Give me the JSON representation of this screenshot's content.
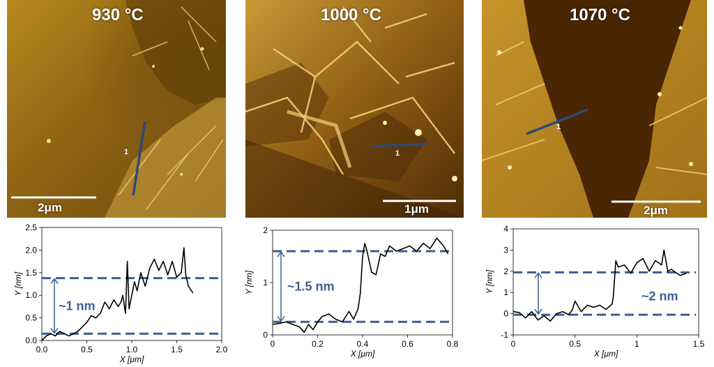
{
  "images": [
    {
      "temperature": "930 °C",
      "scale_bar": "2μm",
      "profile_label": "1"
    },
    {
      "temperature": "1000 °C",
      "scale_bar": "1μm",
      "profile_label": "1"
    },
    {
      "temperature": "1070 °C",
      "scale_bar": "2μm",
      "profile_label": "1"
    }
  ],
  "colors": {
    "profile_line": "#2c4a78",
    "dashed": "#3a5f8f",
    "trace": "#000000",
    "annotation": "#3a5f8f"
  },
  "chart_data": [
    {
      "type": "line",
      "xlabel": "X [μm]",
      "ylabel": "Y [nm]",
      "xlim": [
        0,
        2.0
      ],
      "ylim": [
        0,
        2.5
      ],
      "xticks": [
        0.0,
        0.5,
        1.0,
        1.5,
        2.0
      ],
      "xtick_labels": [
        "0.0",
        "0.5",
        "1.0",
        "1.5",
        "2.0"
      ],
      "yticks": [
        0.0,
        0.5,
        1.0,
        1.5,
        2.0,
        2.5
      ],
      "ytick_labels": [
        "0.0",
        "0.5",
        "1.0",
        "1.5",
        "2.0",
        "2.5"
      ],
      "grid": false,
      "x": [
        0.0,
        0.05,
        0.1,
        0.15,
        0.2,
        0.25,
        0.3,
        0.35,
        0.4,
        0.45,
        0.5,
        0.55,
        0.6,
        0.65,
        0.7,
        0.75,
        0.8,
        0.85,
        0.88,
        0.9,
        0.93,
        0.95,
        0.97,
        1.0,
        1.03,
        1.06,
        1.1,
        1.15,
        1.2,
        1.25,
        1.3,
        1.35,
        1.4,
        1.45,
        1.5,
        1.55,
        1.58,
        1.6,
        1.63,
        1.68
      ],
      "y": [
        0.0,
        0.1,
        0.15,
        0.1,
        0.2,
        0.15,
        0.1,
        0.15,
        0.2,
        0.3,
        0.4,
        0.55,
        0.5,
        0.6,
        0.85,
        0.7,
        0.9,
        0.75,
        0.85,
        1.0,
        0.6,
        1.75,
        0.7,
        1.0,
        1.3,
        1.1,
        1.5,
        1.2,
        1.6,
        1.8,
        1.55,
        1.75,
        1.45,
        1.75,
        1.4,
        1.5,
        2.05,
        1.45,
        1.2,
        1.05
      ],
      "reference_lines": [
        0.15,
        1.38
      ],
      "annotation": "~1 nm"
    },
    {
      "type": "line",
      "xlabel": "X [μm]",
      "ylabel": "Y [nm]",
      "xlim": [
        0,
        0.8
      ],
      "ylim": [
        0,
        2
      ],
      "xticks": [
        0,
        0.2,
        0.4,
        0.6,
        0.8
      ],
      "xtick_labels": [
        "0",
        "0.2",
        "0.4",
        "0.6",
        "0.8"
      ],
      "yticks": [
        0,
        1,
        2
      ],
      "ytick_labels": [
        "0",
        "1",
        "2"
      ],
      "grid": false,
      "x": [
        0.0,
        0.03,
        0.06,
        0.09,
        0.12,
        0.14,
        0.16,
        0.18,
        0.2,
        0.22,
        0.25,
        0.28,
        0.31,
        0.34,
        0.36,
        0.38,
        0.39,
        0.4,
        0.41,
        0.42,
        0.44,
        0.46,
        0.48,
        0.5,
        0.52,
        0.55,
        0.58,
        0.61,
        0.64,
        0.67,
        0.7,
        0.73,
        0.76,
        0.78
      ],
      "y": [
        0.2,
        0.22,
        0.25,
        0.2,
        0.15,
        0.05,
        0.2,
        0.1,
        0.25,
        0.35,
        0.4,
        0.3,
        0.25,
        0.45,
        0.3,
        0.5,
        0.8,
        1.5,
        1.75,
        1.6,
        1.2,
        1.15,
        1.55,
        1.5,
        1.7,
        1.6,
        1.65,
        1.7,
        1.6,
        1.75,
        1.65,
        1.85,
        1.7,
        1.55
      ],
      "reference_lines": [
        0.25,
        1.6
      ],
      "annotation": "~1.5 nm"
    },
    {
      "type": "line",
      "xlabel": "X [μm]",
      "ylabel": "Y [nm]",
      "xlim": [
        0,
        1.5
      ],
      "ylim": [
        -1,
        4
      ],
      "xticks": [
        0,
        0.5,
        1,
        1.5
      ],
      "xtick_labels": [
        "0",
        "0.5",
        "1",
        "1.5"
      ],
      "yticks": [
        -1,
        0,
        1,
        2,
        3,
        4
      ],
      "ytick_labels": [
        "-1",
        "0",
        "1",
        "2",
        "3",
        "4"
      ],
      "grid": false,
      "x": [
        0.0,
        0.05,
        0.1,
        0.15,
        0.2,
        0.25,
        0.3,
        0.35,
        0.4,
        0.45,
        0.48,
        0.5,
        0.55,
        0.6,
        0.65,
        0.7,
        0.75,
        0.8,
        0.81,
        0.83,
        0.85,
        0.9,
        0.95,
        1.0,
        1.05,
        1.1,
        1.15,
        1.2,
        1.22,
        1.25,
        1.28,
        1.3,
        1.35,
        1.4
      ],
      "y": [
        0.1,
        0.05,
        -0.2,
        0.1,
        -0.3,
        -0.1,
        -0.35,
        0.0,
        0.1,
        -0.05,
        0.2,
        0.6,
        0.1,
        0.4,
        0.3,
        0.4,
        0.2,
        0.45,
        0.8,
        2.5,
        2.2,
        2.3,
        1.9,
        2.4,
        2.6,
        2.0,
        2.5,
        2.3,
        3.0,
        2.0,
        2.1,
        2.0,
        1.8,
        1.9
      ],
      "reference_lines": [
        -0.05,
        1.95
      ],
      "annotation": "~2 nm"
    }
  ]
}
